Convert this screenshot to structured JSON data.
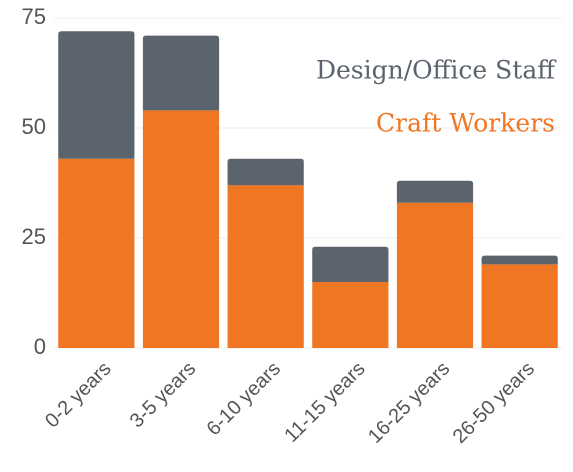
{
  "chart_data": {
    "type": "stacked_bar",
    "categories": [
      "0-2 years",
      "3-5 years",
      "6-10 years",
      "11-15 years",
      "16-25 years",
      "26-50 years"
    ],
    "series": [
      {
        "name": "Craft Workers",
        "color": "#ef7622",
        "values": [
          43,
          54,
          37,
          15,
          33,
          19
        ]
      },
      {
        "name": "Design/Office Staff",
        "color": "#5b636c",
        "values": [
          29,
          17,
          6,
          8,
          5,
          2
        ]
      }
    ],
    "ylim": [
      0,
      75
    ],
    "yticks": [
      0,
      25,
      50,
      75
    ],
    "grid": true,
    "legend": "top-right"
  }
}
